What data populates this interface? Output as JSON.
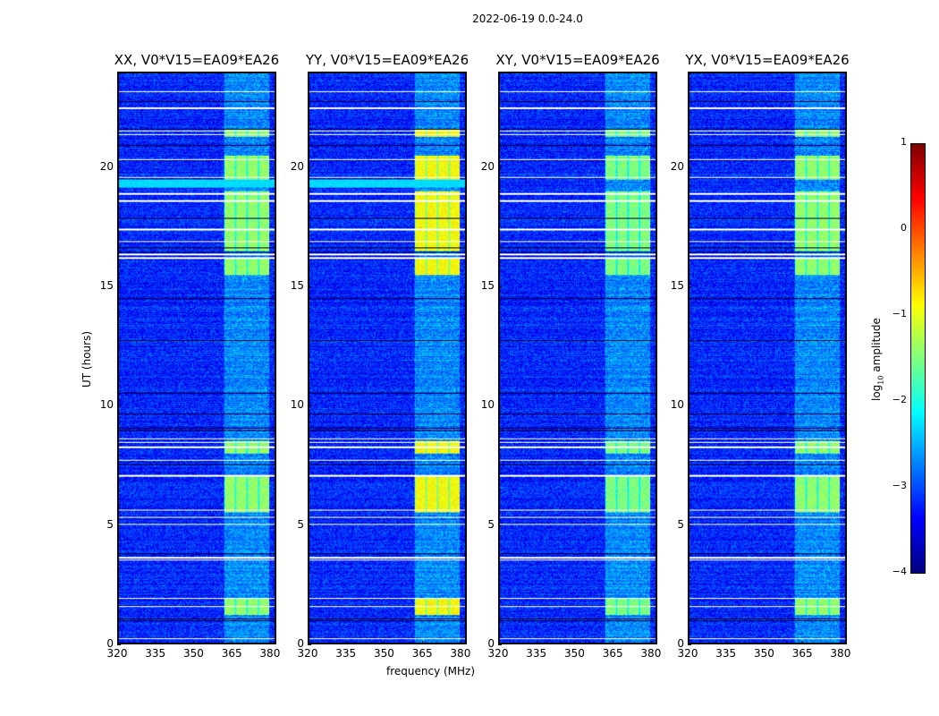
{
  "chart_data": {
    "type": "heatmap",
    "suptitle": "2022-06-19 0.0-24.0",
    "xlabel": "frequency (MHz)",
    "ylabel": "UT (hours)",
    "xlim": [
      320,
      382.5
    ],
    "ylim": [
      0,
      24
    ],
    "xticks": [
      320,
      335,
      350,
      365,
      380
    ],
    "yticks": [
      0,
      5,
      10,
      15,
      20
    ],
    "panels": [
      {
        "title": "XX, V0*V15=EA09*EA26",
        "band_level": -1.4
      },
      {
        "title": "YY, V0*V15=EA09*EA26",
        "band_level": -0.9
      },
      {
        "title": "XY, V0*V15=EA09*EA26",
        "band_level": -1.5
      },
      {
        "title": "YX, V0*V15=EA09*EA26",
        "band_level": -1.4
      }
    ],
    "background_level": -3.2,
    "rfi_band_mhz": [
      362,
      380
    ],
    "rfi_active_hours": [
      [
        1.2,
        1.9
      ],
      [
        5.5,
        7.0
      ],
      [
        8.0,
        8.5
      ],
      [
        15.5,
        16.2
      ],
      [
        16.5,
        19.0
      ],
      [
        19.5,
        20.5
      ],
      [
        21.3,
        21.6
      ]
    ],
    "flagged_hours": [
      0.2,
      1.55,
      1.9,
      3.5,
      3.6,
      5.0,
      5.3,
      5.6,
      7.05,
      7.7,
      8.25,
      8.45,
      8.6,
      16.2,
      16.35,
      16.9,
      17.4,
      18.6,
      18.9,
      19.6,
      20.35,
      21.4,
      21.55,
      22.5,
      23.2
    ],
    "colorbar": {
      "label": "log10 amplitude",
      "range": [
        -4,
        1
      ],
      "ticks": [
        -4,
        -3,
        -2,
        -1,
        0,
        1
      ],
      "tick_labels": [
        "−4",
        "−3",
        "−2",
        "−1",
        "0",
        "1"
      ],
      "colormap": "jet"
    }
  }
}
